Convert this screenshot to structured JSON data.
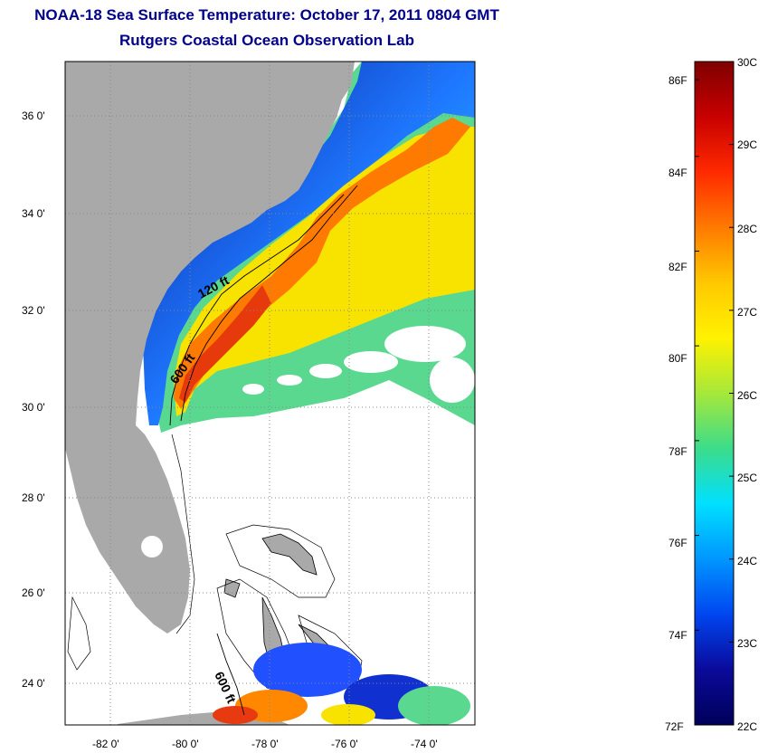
{
  "header": {
    "title": "NOAA-18 Sea Surface Temperature:  October 17, 2011 0804 GMT",
    "subtitle": "Rutgers Coastal Ocean Observation Lab"
  },
  "map": {
    "lon_ticks": [
      "-82 0'",
      "-80 0'",
      "-78 0'",
      "-76 0'",
      "-74 0'"
    ],
    "lat_ticks": [
      "36 0'",
      "34 0'",
      "32 0'",
      "30 0'",
      "28 0'",
      "26 0'",
      "24 0'"
    ],
    "contours": [
      "120 ft",
      "600 ft",
      "600 ft"
    ],
    "colors": {
      "land": "#a9a9a9",
      "cloud_mask": "#ffffff",
      "cold": "#0a1e9a",
      "warm": "#e03c10"
    }
  },
  "colorbar": {
    "fahrenheit": [
      "86F",
      "84F",
      "82F",
      "80F",
      "78F",
      "76F",
      "74F",
      "72F"
    ],
    "celsius": [
      "30C",
      "29C",
      "28C",
      "27C",
      "26C",
      "25C",
      "24C",
      "23C",
      "22C"
    ],
    "gradient": [
      "#7f0000",
      "#c80000",
      "#ff2a00",
      "#ff7a00",
      "#ffc800",
      "#fff200",
      "#a6e83a",
      "#3cdc8a",
      "#00e0ff",
      "#0096ff",
      "#0046f0",
      "#0a0a9a",
      "#00005a"
    ]
  }
}
